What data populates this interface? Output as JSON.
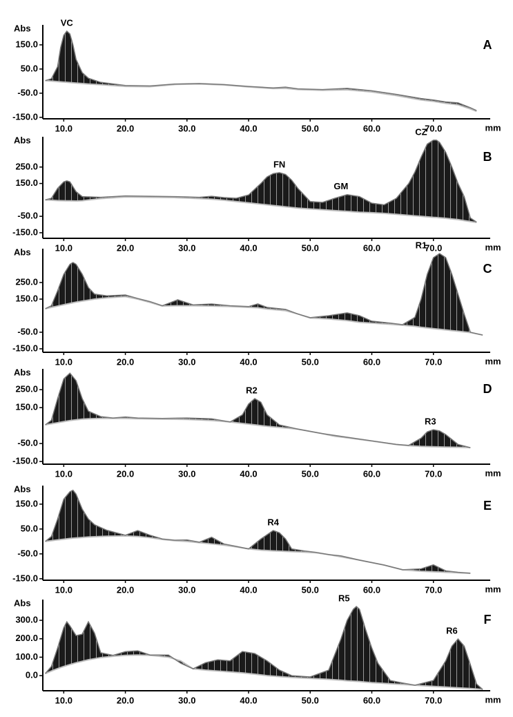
{
  "chart_data": [
    {
      "type": "area",
      "title": "A",
      "ylabel": "Abs",
      "xlabel": "mm",
      "xlim": [
        6.6,
        78.1
      ],
      "ylim": [
        -156,
        227
      ],
      "xticks": [
        {
          "value": 10,
          "label": "10.0"
        },
        {
          "value": 20,
          "label": "20.0"
        },
        {
          "value": 30,
          "label": "30.0"
        },
        {
          "value": 40,
          "label": "40.0"
        },
        {
          "value": 50,
          "label": "50.0"
        },
        {
          "value": 60,
          "label": "60.0"
        },
        {
          "value": 70,
          "label": "70.0"
        }
      ],
      "yticks": [
        {
          "value": 150,
          "label": "150.0"
        },
        {
          "value": 50,
          "label": "50.0"
        },
        {
          "value": -50,
          "label": "-50.0"
        },
        {
          "value": -150,
          "label": "-150.0"
        }
      ],
      "x": [
        7,
        8,
        9,
        9.5,
        10,
        10.5,
        11,
        11.5,
        12,
        13,
        14,
        16,
        20,
        24,
        28,
        32,
        36,
        40,
        44,
        46,
        48,
        52,
        56,
        60,
        64,
        68,
        70,
        72,
        74,
        76,
        77
      ],
      "values": [
        2,
        10,
        60,
        140,
        190,
        207,
        195,
        150,
        90,
        35,
        12,
        -5,
        -18,
        -20,
        -12,
        -10,
        -14,
        -22,
        -28,
        -25,
        -32,
        -35,
        -30,
        -40,
        -55,
        -72,
        -78,
        -86,
        -90,
        -110,
        -122
      ],
      "baseline": [
        2,
        0,
        -2,
        -3,
        -4,
        -5,
        -6,
        -7,
        -8,
        -10,
        -12,
        -15,
        -22,
        -23,
        -14,
        -12,
        -16,
        -24,
        -31,
        -30,
        -35,
        -38,
        -36,
        -45,
        -60,
        -78,
        -84,
        -92,
        -98,
        -115,
        -125
      ],
      "annotations": [
        {
          "text": "VC",
          "x": 10.5,
          "y": 207
        }
      ]
    },
    {
      "type": "area",
      "title": "B",
      "ylabel": "Abs",
      "xlabel": "mm",
      "xlim": [
        6.6,
        78.1
      ],
      "ylim": [
        -184,
        426
      ],
      "xticks": [
        {
          "value": 10,
          "label": "10.0"
        },
        {
          "value": 20,
          "label": "20.0"
        },
        {
          "value": 30,
          "label": "30.0"
        },
        {
          "value": 40,
          "label": "40.0"
        },
        {
          "value": 50,
          "label": "50.0"
        },
        {
          "value": 60,
          "label": "60.0"
        },
        {
          "value": 70,
          "label": "70.0"
        }
      ],
      "yticks": [
        {
          "value": 250,
          "label": "250.0"
        },
        {
          "value": 150,
          "label": "150.0"
        },
        {
          "value": -50,
          "label": "-50.0"
        },
        {
          "value": -150,
          "label": "-150.0"
        }
      ],
      "x": [
        7,
        8,
        9,
        10,
        10.5,
        11,
        12,
        13,
        16,
        20,
        24,
        28,
        32,
        34,
        36,
        38,
        40,
        42,
        43,
        44,
        45,
        46,
        47,
        48,
        50,
        52,
        54,
        56,
        58,
        60,
        62,
        64,
        66,
        67,
        68,
        69,
        70,
        70.5,
        71,
        72,
        73,
        74,
        75,
        76,
        77
      ],
      "values": [
        50,
        60,
        120,
        160,
        166,
        160,
        100,
        70,
        66,
        74,
        72,
        70,
        66,
        72,
        64,
        60,
        80,
        150,
        190,
        210,
        216,
        205,
        170,
        120,
        40,
        35,
        60,
        82,
        70,
        30,
        20,
        60,
        150,
        220,
        310,
        390,
        414,
        414,
        400,
        340,
        250,
        150,
        70,
        -60,
        -85
      ],
      "baseline": [
        50,
        48,
        46,
        45,
        44,
        44,
        43,
        45,
        58,
        68,
        66,
        64,
        58,
        54,
        48,
        40,
        32,
        24,
        20,
        16,
        12,
        8,
        4,
        0,
        -5,
        -10,
        -15,
        -20,
        -25,
        -28,
        -32,
        -38,
        -44,
        -47,
        -50,
        -53,
        -56,
        -57,
        -59,
        -62,
        -66,
        -70,
        -76,
        -82,
        -88
      ],
      "annotations": [
        {
          "text": "FN",
          "x": 45,
          "y": 216
        },
        {
          "text": "GM",
          "x": 55,
          "y": 82
        },
        {
          "text": "CZ",
          "x": 68,
          "y": 414
        }
      ]
    },
    {
      "type": "area",
      "title": "C",
      "ylabel": "Abs",
      "xlabel": "mm",
      "xlim": [
        6.6,
        78.1
      ],
      "ylim": [
        -171,
        446
      ],
      "xticks": [
        {
          "value": 10,
          "label": "10.0"
        },
        {
          "value": 20,
          "label": "20.0"
        },
        {
          "value": 30,
          "label": "30.0"
        },
        {
          "value": 40,
          "label": "40.0"
        },
        {
          "value": 50,
          "label": "50.0"
        },
        {
          "value": 60,
          "label": "60.0"
        },
        {
          "value": 70,
          "label": "70.0"
        }
      ],
      "yticks": [
        {
          "value": 250,
          "label": "250.0"
        },
        {
          "value": 150,
          "label": "150.0"
        },
        {
          "value": -50,
          "label": "-50.0"
        },
        {
          "value": -150,
          "label": "-150.0"
        }
      ],
      "x": [
        7,
        8,
        9,
        10,
        11,
        11.5,
        12,
        13,
        14,
        15,
        17,
        20,
        22,
        24,
        26,
        28.5,
        31,
        34,
        37,
        40,
        41.5,
        43,
        46,
        48,
        50,
        53,
        56,
        58,
        60,
        63,
        65,
        67,
        68,
        69,
        70,
        71,
        72,
        73,
        74,
        75,
        76,
        78
      ],
      "values": [
        92,
        110,
        200,
        300,
        360,
        371,
        360,
        300,
        220,
        180,
        170,
        175,
        154,
        135,
        110,
        146,
        115,
        121,
        110,
        105,
        121,
        100,
        88,
        60,
        38,
        50,
        67,
        50,
        17,
        5,
        -4,
        40,
        150,
        300,
        400,
        425,
        400,
        300,
        180,
        60,
        -50,
        -67
      ],
      "baseline": [
        92,
        100,
        108,
        116,
        124,
        128,
        132,
        138,
        144,
        150,
        158,
        165,
        150,
        130,
        108,
        110,
        110,
        108,
        105,
        100,
        98,
        90,
        80,
        60,
        36,
        30,
        20,
        10,
        5,
        -2,
        -8,
        -14,
        -20,
        -24,
        -28,
        -32,
        -36,
        -40,
        -44,
        -48,
        -52,
        -67
      ],
      "annotations": [
        {
          "text": "R1",
          "x": 68,
          "y": 425
        }
      ]
    },
    {
      "type": "area",
      "title": "D",
      "ylabel": "Abs",
      "xlabel": "mm",
      "xlim": [
        6.6,
        78.1
      ],
      "ylim": [
        -165,
        358
      ],
      "xticks": [
        {
          "value": 10,
          "label": "10.0"
        },
        {
          "value": 20,
          "label": "20.0"
        },
        {
          "value": 30,
          "label": "30.0"
        },
        {
          "value": 40,
          "label": "40.0"
        },
        {
          "value": 50,
          "label": "50.0"
        },
        {
          "value": 60,
          "label": "60.0"
        },
        {
          "value": 70,
          "label": "70.0"
        }
      ],
      "yticks": [
        {
          "value": 250,
          "label": "250.0"
        },
        {
          "value": 150,
          "label": "150.0"
        },
        {
          "value": -50,
          "label": "-50.0"
        },
        {
          "value": -150,
          "label": "-150.0"
        }
      ],
      "x": [
        7,
        8,
        9,
        10,
        11,
        12,
        13,
        14,
        16,
        18,
        20,
        22,
        26,
        30,
        34,
        37,
        39,
        40,
        41,
        42,
        43,
        45,
        48,
        52,
        54,
        56,
        60,
        64,
        66,
        68,
        69,
        70,
        71,
        72,
        74,
        76
      ],
      "values": [
        54,
        80,
        200,
        310,
        342,
        300,
        200,
        130,
        100,
        92,
        98,
        92,
        90,
        92,
        88,
        70,
        110,
        170,
        200,
        180,
        110,
        54,
        30,
        5,
        -5,
        -15,
        -35,
        -55,
        -60,
        -20,
        15,
        27,
        20,
        0,
        -55,
        -73
      ],
      "baseline": [
        54,
        60,
        66,
        72,
        78,
        82,
        86,
        88,
        90,
        90,
        90,
        88,
        86,
        84,
        78,
        70,
        62,
        58,
        54,
        50,
        46,
        40,
        30,
        5,
        -10,
        -18,
        -36,
        -56,
        -62,
        -66,
        -67,
        -68,
        -69,
        -70,
        -71,
        -73
      ],
      "annotations": [
        {
          "text": "R2",
          "x": 40.5,
          "y": 200
        },
        {
          "text": "R3",
          "x": 69.5,
          "y": 27
        }
      ]
    },
    {
      "type": "area",
      "title": "E",
      "ylabel": "Abs",
      "xlabel": "mm",
      "xlim": [
        6.6,
        78.1
      ],
      "ylim": [
        -156,
        219
      ],
      "xticks": [
        {
          "value": 10,
          "label": "10.0"
        },
        {
          "value": 20,
          "label": "20.0"
        },
        {
          "value": 30,
          "label": "30.0"
        },
        {
          "value": 40,
          "label": "40.0"
        },
        {
          "value": 50,
          "label": "50.0"
        },
        {
          "value": 60,
          "label": "60.0"
        },
        {
          "value": 70,
          "label": "70.0"
        }
      ],
      "yticks": [
        {
          "value": 150,
          "label": "150.0"
        },
        {
          "value": 50,
          "label": "50.0"
        },
        {
          "value": -50,
          "label": "-50.0"
        },
        {
          "value": -150,
          "label": "-150.0"
        }
      ],
      "x": [
        7,
        8,
        9,
        10,
        11,
        11.5,
        12,
        13,
        14,
        15,
        17,
        20,
        22,
        24,
        26,
        28,
        30,
        32,
        34,
        36,
        38,
        40,
        42,
        44,
        45,
        46,
        47,
        49,
        51,
        53,
        55,
        58,
        62,
        65,
        68,
        70,
        72,
        74,
        76
      ],
      "values": [
        0,
        20,
        90,
        170,
        200,
        206,
        190,
        130,
        90,
        67,
        45,
        25,
        44,
        25,
        10,
        5,
        6,
        -3,
        17,
        -10,
        -20,
        -30,
        10,
        44,
        35,
        10,
        -30,
        -38,
        -44,
        -53,
        -58,
        -75,
        -95,
        -114,
        -110,
        -94,
        -118,
        -124,
        -128
      ],
      "baseline": [
        0,
        3,
        6,
        9,
        12,
        13,
        14,
        16,
        18,
        19,
        21,
        22,
        20,
        15,
        8,
        3,
        0,
        -5,
        -10,
        -15,
        -22,
        -30,
        -35,
        -38,
        -39,
        -40,
        -41,
        -43,
        -46,
        -53,
        -62,
        -75,
        -95,
        -114,
        -120,
        -122,
        -124,
        -126,
        -128
      ],
      "annotations": [
        {
          "text": "R4",
          "x": 44,
          "y": 44
        }
      ]
    },
    {
      "type": "area",
      "title": "F",
      "ylabel": "Abs",
      "xlabel": "mm",
      "xlim": [
        6.6,
        78.1
      ],
      "ylim": [
        -82,
        405
      ],
      "xticks": [
        {
          "value": 10,
          "label": "10.0"
        },
        {
          "value": 20,
          "label": "20.0"
        },
        {
          "value": 30,
          "label": "30.0"
        },
        {
          "value": 40,
          "label": "40.0"
        },
        {
          "value": 50,
          "label": "50.0"
        },
        {
          "value": 60,
          "label": "60.0"
        },
        {
          "value": 70,
          "label": "70.0"
        }
      ],
      "yticks": [
        {
          "value": 300,
          "label": "300.0"
        },
        {
          "value": 200,
          "label": "200.0"
        },
        {
          "value": 100,
          "label": "100.0"
        },
        {
          "value": 0,
          "label": "0.0"
        }
      ],
      "x": [
        7,
        8,
        9,
        10,
        10.5,
        11,
        12,
        13,
        14,
        15,
        16,
        18,
        20,
        22,
        24,
        27,
        29,
        31,
        33,
        35,
        37,
        39,
        41,
        43,
        45,
        47,
        50,
        53,
        55,
        56,
        57,
        57.5,
        58,
        59,
        60,
        61,
        63,
        65,
        67,
        70,
        72,
        73,
        74,
        75,
        76,
        77,
        78
      ],
      "values": [
        11,
        50,
        150,
        260,
        292,
        270,
        217,
        225,
        292,
        230,
        124,
        110,
        130,
        135,
        112,
        112,
        67,
        37,
        70,
        86,
        80,
        131,
        120,
        80,
        30,
        0,
        -7,
        30,
        200,
        300,
        360,
        375,
        360,
        250,
        150,
        67,
        -26,
        -40,
        -52,
        -26,
        80,
        160,
        199,
        160,
        60,
        -45,
        -75
      ],
      "baseline": [
        11,
        25,
        38,
        50,
        55,
        60,
        70,
        78,
        86,
        92,
        98,
        105,
        110,
        112,
        110,
        100,
        80,
        37,
        30,
        25,
        20,
        15,
        8,
        0,
        -5,
        -10,
        -15,
        -20,
        -25,
        -28,
        -30,
        -31,
        -32,
        -35,
        -38,
        -40,
        -44,
        -48,
        -52,
        -58,
        -62,
        -64,
        -66,
        -68,
        -70,
        -72,
        -75
      ],
      "annotations": [
        {
          "text": "R5",
          "x": 55.5,
          "y": 375
        },
        {
          "text": "R6",
          "x": 73,
          "y": 199
        }
      ]
    }
  ]
}
